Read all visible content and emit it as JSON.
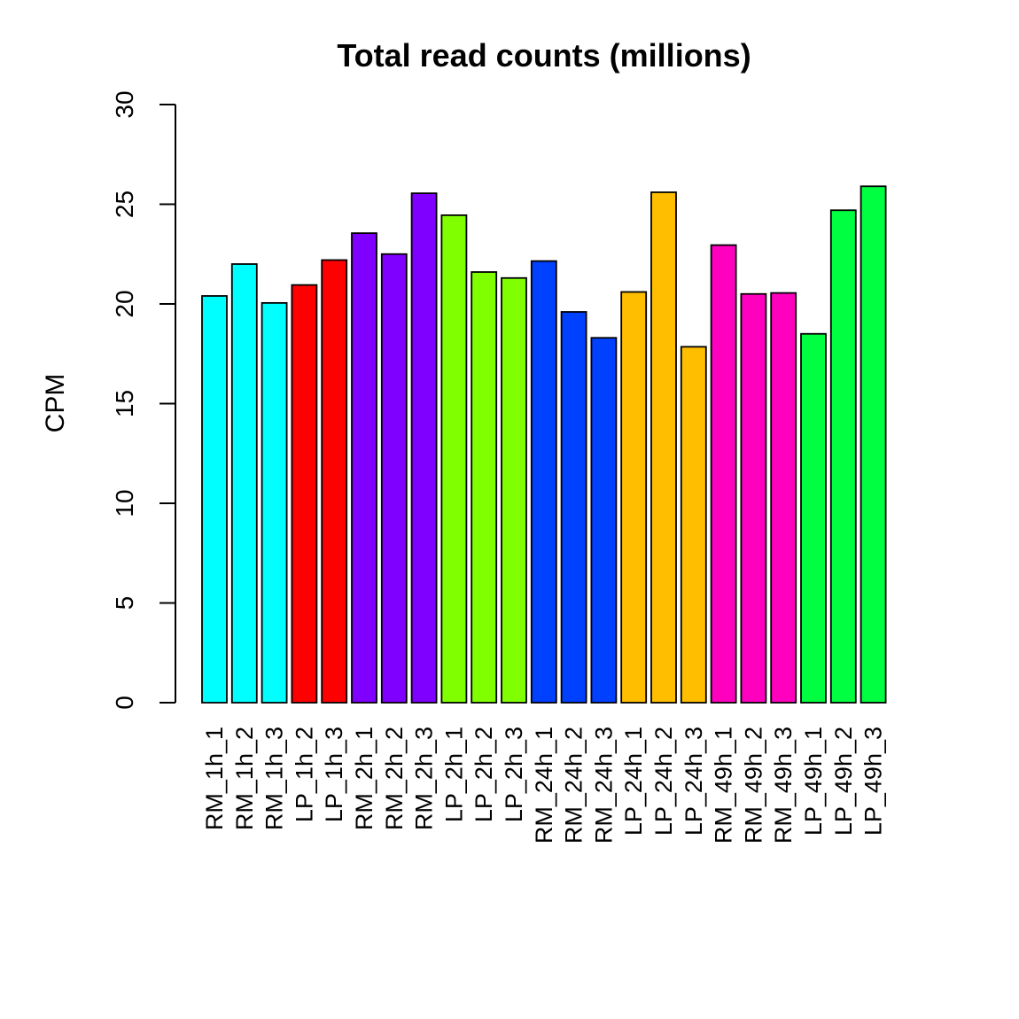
{
  "chart_data": {
    "type": "bar",
    "title": "Total read counts (millions)",
    "xlabel": "",
    "ylabel": "CPM",
    "ylim": [
      0,
      30
    ],
    "yticks": [
      0,
      5,
      10,
      15,
      20,
      25,
      30
    ],
    "grid": false,
    "categories": [
      "RM_1h_1",
      "RM_1h_2",
      "RM_1h_3",
      "LP_1h_2",
      "LP_1h_3",
      "RM_2h_1",
      "RM_2h_2",
      "RM_2h_3",
      "LP_2h_1",
      "LP_2h_2",
      "LP_2h_3",
      "RM_24h_1",
      "RM_24h_2",
      "RM_24h_3",
      "LP_24h_1",
      "LP_24h_2",
      "LP_24h_3",
      "RM_49h_1",
      "RM_49h_2",
      "RM_49h_3",
      "LP_49h_1",
      "LP_49h_2",
      "LP_49h_3"
    ],
    "values": [
      20.4,
      22.0,
      20.05,
      20.95,
      22.2,
      23.55,
      22.5,
      25.55,
      24.45,
      21.6,
      21.3,
      22.15,
      19.6,
      18.3,
      20.6,
      25.6,
      17.85,
      22.95,
      20.5,
      20.55,
      18.5,
      24.7,
      25.9
    ],
    "colors": [
      "#00FFFF",
      "#00FFFF",
      "#00FFFF",
      "#FF0000",
      "#FF0000",
      "#8000FF",
      "#8000FF",
      "#8000FF",
      "#80FF00",
      "#80FF00",
      "#80FF00",
      "#0040FF",
      "#0040FF",
      "#0040FF",
      "#FFBF00",
      "#FFBF00",
      "#FFBF00",
      "#FF00BF",
      "#FF00BF",
      "#FF00BF",
      "#00FF40",
      "#00FF40",
      "#00FF40"
    ]
  }
}
